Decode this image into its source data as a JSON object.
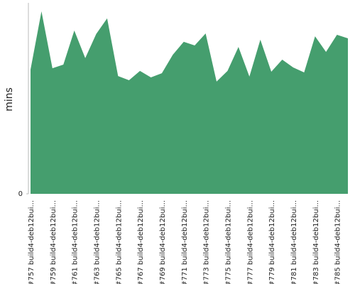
{
  "chart_data": {
    "type": "area",
    "y_label": "mins",
    "categories": [
      "#757 build4-deb12bui...",
      null,
      "#759 build4-deb12bui...",
      null,
      "#761 build4-deb12bui...",
      null,
      "#763 build4-deb12bui...",
      null,
      "#765 build4-deb12bui...",
      null,
      "#767 build4-deb12bui...",
      null,
      "#769 build4-deb12bui...",
      null,
      "#771 build4-deb12bui...",
      null,
      "#773 build4-deb12bui...",
      null,
      "#775 build4-deb12bui...",
      null,
      "#777 build4-deb12bui...",
      null,
      "#779 build4-deb12bui...",
      null,
      "#781 build4-deb12bui...",
      null,
      "#783 build4-deb12bui...",
      null,
      "#785 build4-deb12bui...",
      null
    ],
    "values": [
      65.3,
      95.9,
      66.0,
      67.9,
      85.8,
      71.3,
      84.0,
      92.2,
      61.9,
      59.7,
      64.6,
      61.2,
      63.4,
      73.1,
      79.9,
      78.0,
      84.3,
      59.0,
      64.6,
      77.2,
      61.6,
      81.0,
      64.2,
      70.5,
      66.4,
      63.8,
      82.8,
      74.6,
      83.6,
      81.7
    ],
    "color": "#459e6e",
    "ylim": [
      0,
      100
    ],
    "yticks": [
      0
    ]
  }
}
